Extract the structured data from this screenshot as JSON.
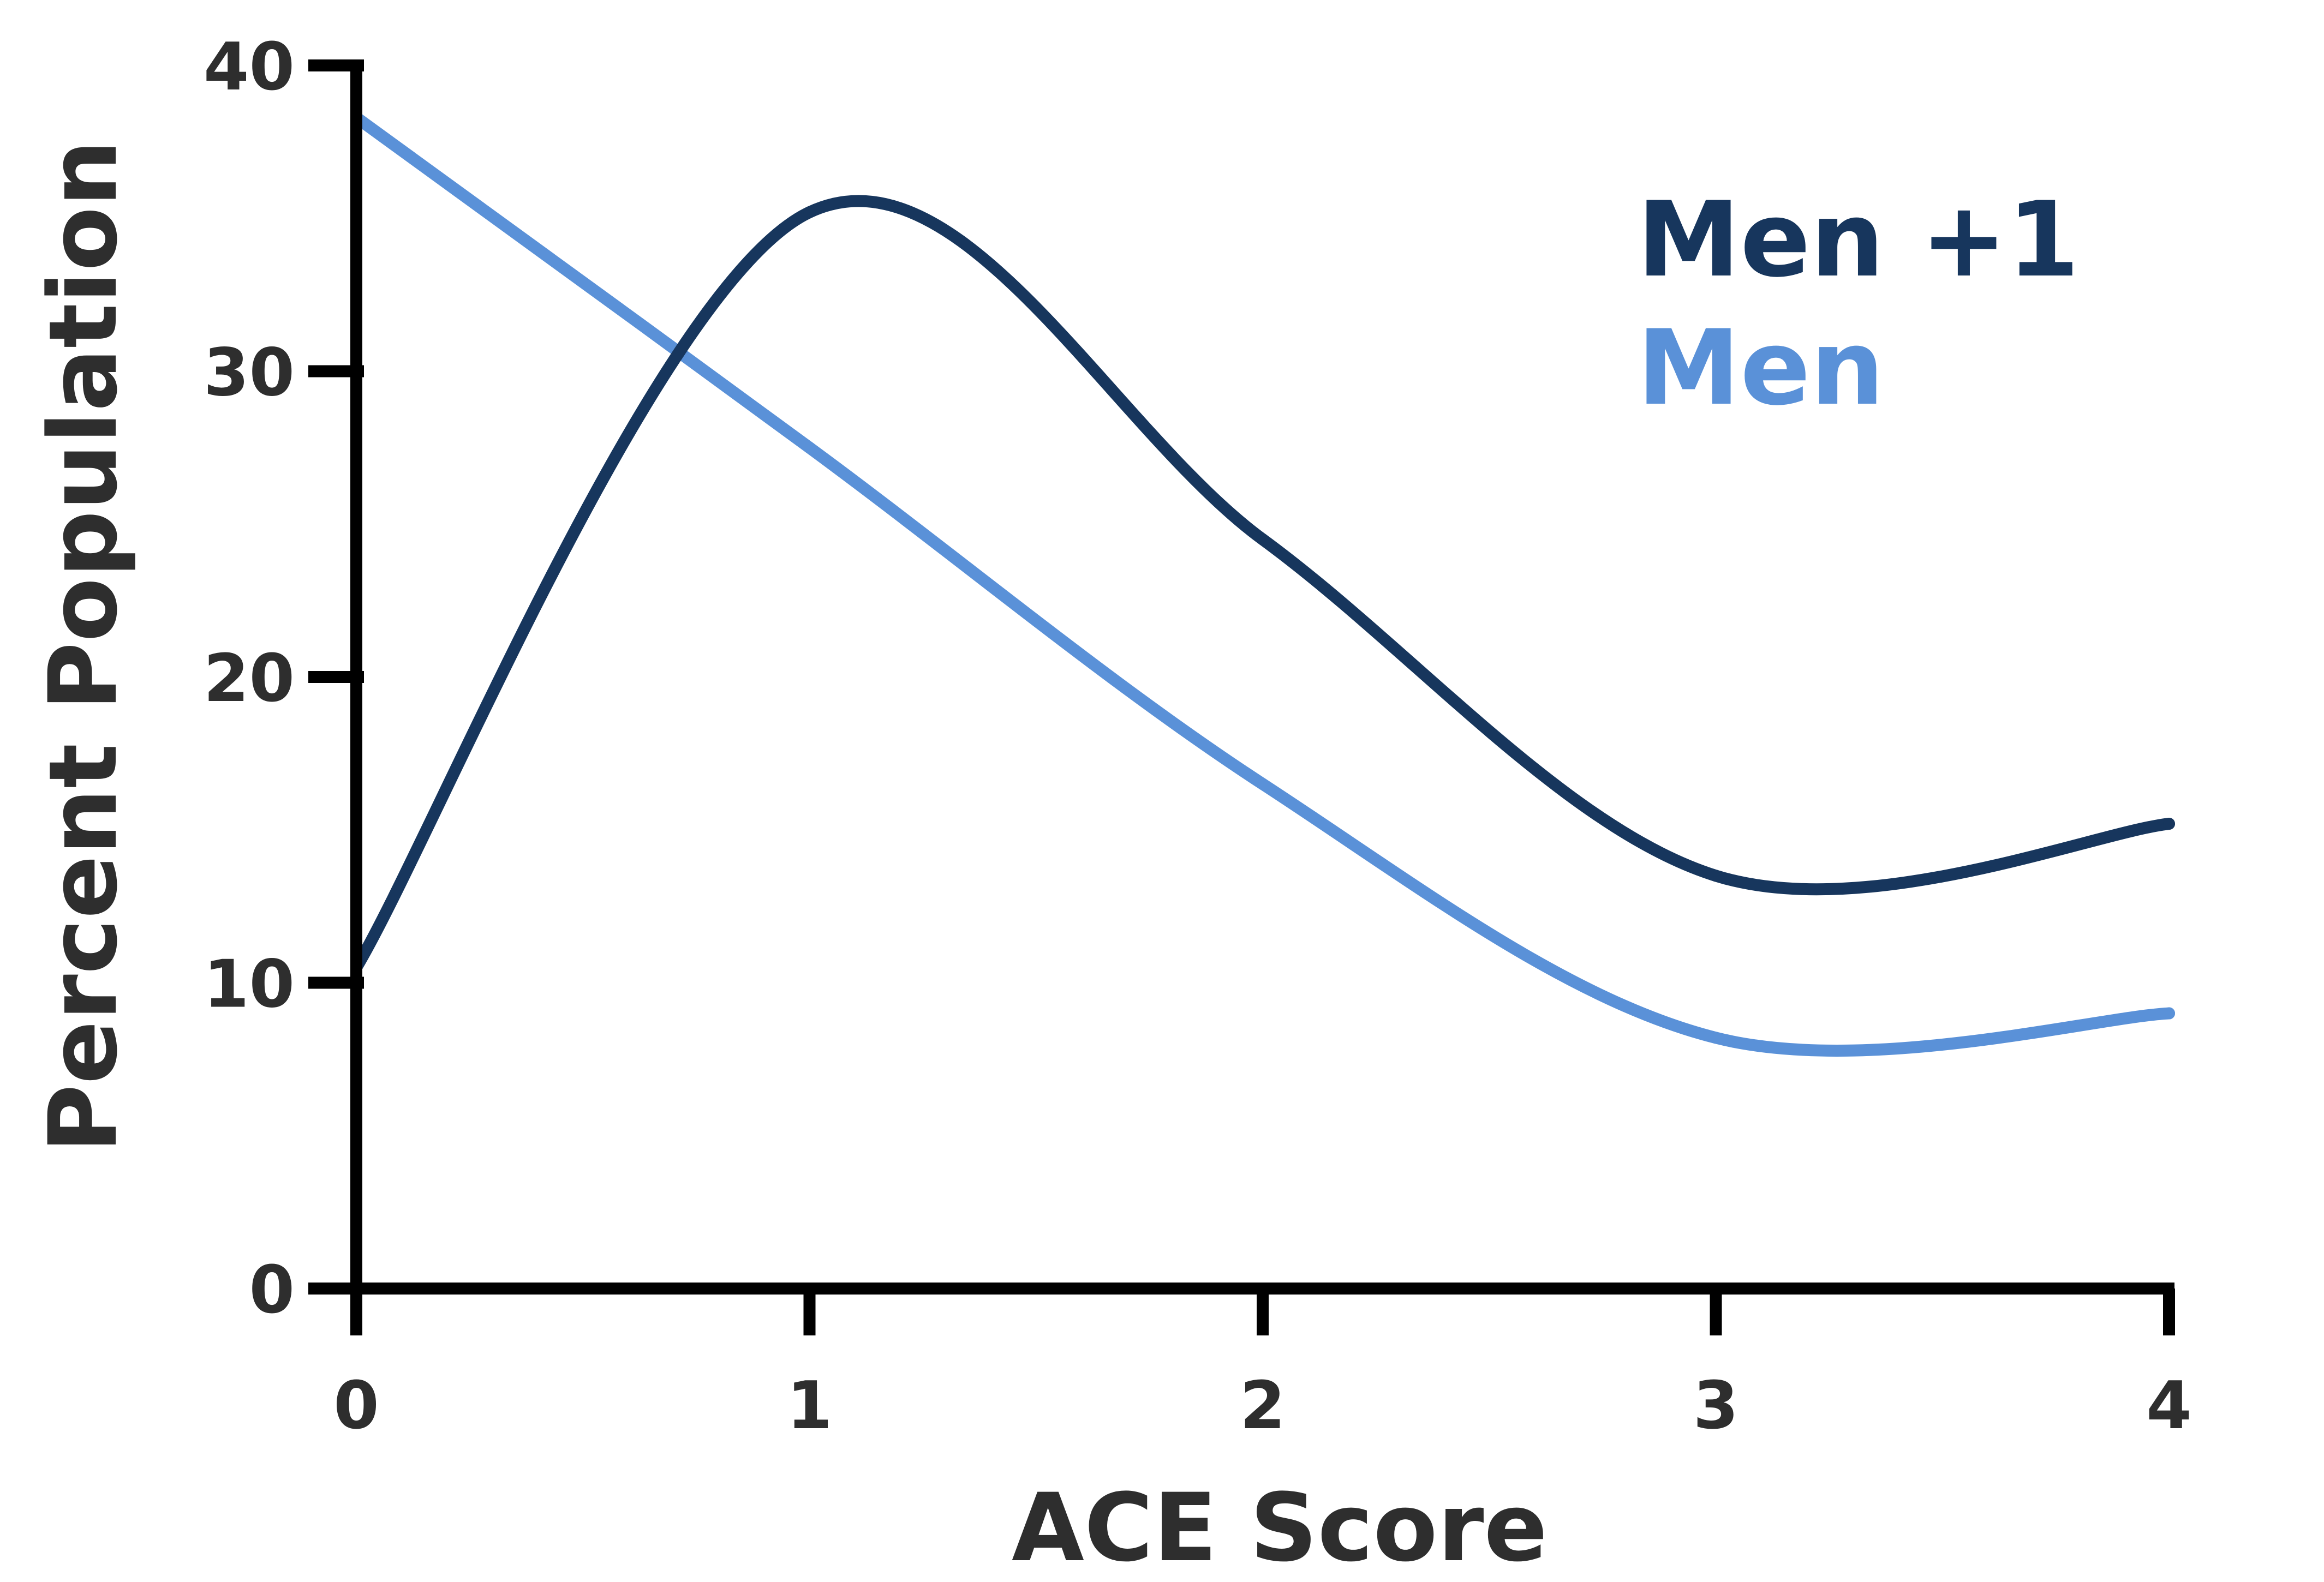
{
  "chart_data": {
    "type": "line",
    "title": "",
    "xlabel": "ACE Score",
    "ylabel": "Percent Population",
    "x": [
      0,
      1,
      2,
      3,
      4
    ],
    "xticks": [
      "0",
      "1",
      "2",
      "3",
      "4"
    ],
    "yticks": [
      "0",
      "10",
      "20",
      "30",
      "40"
    ],
    "xlim": [
      0,
      4
    ],
    "ylim": [
      0,
      40
    ],
    "grid": false,
    "smooth": true,
    "legend_position": "top-right",
    "series": [
      {
        "name": "Men +1",
        "color": "#17365d",
        "values": [
          10.5,
          35.2,
          24.5,
          13.5,
          15.2
        ]
      },
      {
        "name": "Men",
        "color": "#5a91d8",
        "values": [
          38.3,
          27.5,
          16.5,
          8.2,
          9.0
        ]
      }
    ]
  }
}
